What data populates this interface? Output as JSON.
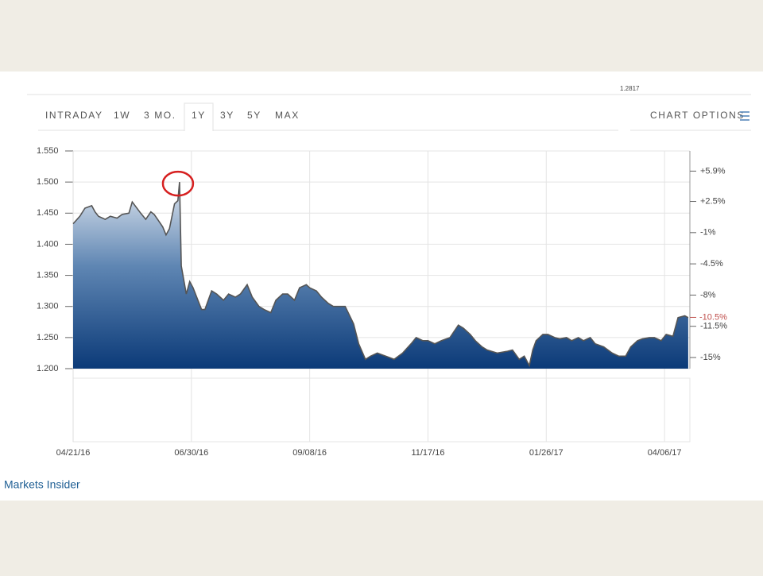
{
  "header_value": "1.2817",
  "tabs": [
    "INTRADAY",
    "1W",
    "3 MO.",
    "1Y",
    "3Y",
    "5Y",
    "MAX"
  ],
  "selected_tab": 3,
  "chart_options": "CHART OPTIONS",
  "source": "Markets Insider",
  "chart_data": {
    "type": "area",
    "color": "#555555",
    "grid": true,
    "x": [
      "2016-04-21",
      "2016-04-25",
      "2016-04-28",
      "2016-05-02",
      "2016-05-04",
      "2016-05-06",
      "2016-05-10",
      "2016-05-13",
      "2016-05-17",
      "2016-05-20",
      "2016-05-24",
      "2016-05-26",
      "2016-05-31",
      "2016-06-03",
      "2016-06-06",
      "2016-06-08",
      "2016-06-10",
      "2016-06-13",
      "2016-06-15",
      "2016-06-17",
      "2016-06-20",
      "2016-06-22",
      "2016-06-23",
      "2016-06-24",
      "2016-06-27",
      "2016-06-29",
      "2016-07-01",
      "2016-07-06",
      "2016-07-08",
      "2016-07-12",
      "2016-07-15",
      "2016-07-19",
      "2016-07-22",
      "2016-07-26",
      "2016-07-29",
      "2016-08-02",
      "2016-08-05",
      "2016-08-09",
      "2016-08-12",
      "2016-08-16",
      "2016-08-19",
      "2016-08-23",
      "2016-08-26",
      "2016-08-30",
      "2016-09-02",
      "2016-09-06",
      "2016-09-08",
      "2016-09-12",
      "2016-09-15",
      "2016-09-19",
      "2016-09-22",
      "2016-09-26",
      "2016-09-29",
      "2016-10-04",
      "2016-10-07",
      "2016-10-11",
      "2016-10-14",
      "2016-10-18",
      "2016-10-21",
      "2016-10-25",
      "2016-10-28",
      "2016-11-02",
      "2016-11-07",
      "2016-11-10",
      "2016-11-14",
      "2016-11-17",
      "2016-11-21",
      "2016-11-25",
      "2016-11-30",
      "2016-12-05",
      "2016-12-08",
      "2016-12-12",
      "2016-12-15",
      "2016-12-19",
      "2016-12-22",
      "2016-12-28",
      "2017-01-03",
      "2017-01-06",
      "2017-01-10",
      "2017-01-13",
      "2017-01-16",
      "2017-01-18",
      "2017-01-20",
      "2017-01-24",
      "2017-01-27",
      "2017-01-31",
      "2017-02-03",
      "2017-02-07",
      "2017-02-10",
      "2017-02-14",
      "2017-02-17",
      "2017-02-21",
      "2017-02-24",
      "2017-03-01",
      "2017-03-06",
      "2017-03-10",
      "2017-03-14",
      "2017-03-17",
      "2017-03-21",
      "2017-03-24",
      "2017-03-28",
      "2017-03-31",
      "2017-04-04",
      "2017-04-07",
      "2017-04-11",
      "2017-04-14",
      "2017-04-18",
      "2017-04-20"
    ],
    "values": [
      1.433,
      1.445,
      1.458,
      1.462,
      1.452,
      1.445,
      1.44,
      1.445,
      1.442,
      1.448,
      1.45,
      1.468,
      1.45,
      1.44,
      1.452,
      1.448,
      1.44,
      1.428,
      1.415,
      1.425,
      1.465,
      1.47,
      1.5,
      1.365,
      1.32,
      1.34,
      1.33,
      1.295,
      1.295,
      1.325,
      1.32,
      1.31,
      1.32,
      1.315,
      1.32,
      1.335,
      1.315,
      1.3,
      1.295,
      1.29,
      1.31,
      1.32,
      1.32,
      1.31,
      1.33,
      1.335,
      1.33,
      1.325,
      1.315,
      1.305,
      1.3,
      1.3,
      1.3,
      1.272,
      1.24,
      1.215,
      1.22,
      1.225,
      1.222,
      1.218,
      1.215,
      1.225,
      1.24,
      1.25,
      1.245,
      1.245,
      1.24,
      1.245,
      1.25,
      1.27,
      1.265,
      1.255,
      1.245,
      1.235,
      1.23,
      1.225,
      1.228,
      1.23,
      1.215,
      1.22,
      1.205,
      1.23,
      1.245,
      1.255,
      1.255,
      1.25,
      1.248,
      1.25,
      1.245,
      1.25,
      1.245,
      1.25,
      1.24,
      1.235,
      1.225,
      1.22,
      1.22,
      1.235,
      1.245,
      1.248,
      1.25,
      1.25,
      1.245,
      1.255,
      1.252,
      1.282,
      1.285,
      1.282
    ],
    "xlim": [
      "2016-04-21",
      "2017-04-21"
    ],
    "xticks": [
      {
        "value": "2016-04-21",
        "label": "04/21/16"
      },
      {
        "value": "2016-06-30",
        "label": "06/30/16"
      },
      {
        "value": "2016-09-08",
        "label": "09/08/16"
      },
      {
        "value": "2016-11-17",
        "label": "11/17/16"
      },
      {
        "value": "2017-01-26",
        "label": "01/26/17"
      },
      {
        "value": "2017-04-06",
        "label": "04/06/17"
      }
    ],
    "ylim": [
      1.2,
      1.55
    ],
    "yticks": [
      {
        "value": 1.2,
        "label": "1.200"
      },
      {
        "value": 1.25,
        "label": "1.250"
      },
      {
        "value": 1.3,
        "label": "1.300"
      },
      {
        "value": 1.35,
        "label": "1.350"
      },
      {
        "value": 1.4,
        "label": "1.400"
      },
      {
        "value": 1.45,
        "label": "1.450"
      },
      {
        "value": 1.5,
        "label": "1.500"
      },
      {
        "value": 1.55,
        "label": "1.550"
      }
    ],
    "y2lim": [
      -16.25,
      8.16
    ],
    "y2ticks": [
      {
        "value": 5.9,
        "label": "+5.9%"
      },
      {
        "value": 2.5,
        "label": "+2.5%"
      },
      {
        "value": -1,
        "label": "-1%"
      },
      {
        "value": -4.5,
        "label": "-4.5%"
      },
      {
        "value": -8,
        "label": "-8%"
      },
      {
        "value": -11.5,
        "label": "-11.5%"
      },
      {
        "value": -15,
        "label": "-15%"
      }
    ],
    "current_label": {
      "value": -10.5,
      "label": "-10.5%",
      "color": "#c0504d"
    }
  }
}
